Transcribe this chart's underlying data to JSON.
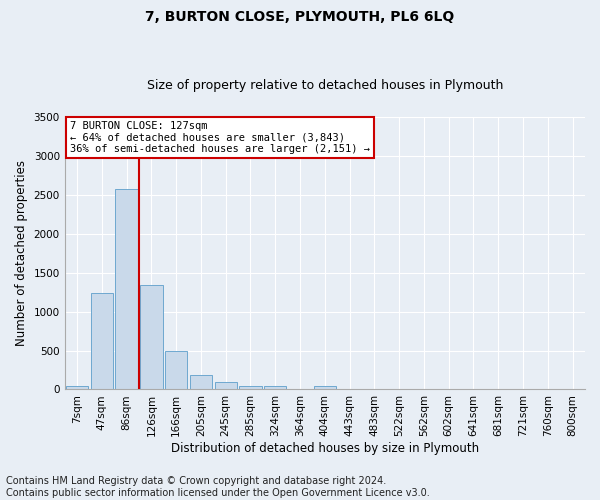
{
  "title": "7, BURTON CLOSE, PLYMOUTH, PL6 6LQ",
  "subtitle": "Size of property relative to detached houses in Plymouth",
  "xlabel": "Distribution of detached houses by size in Plymouth",
  "ylabel": "Number of detached properties",
  "categories": [
    "7sqm",
    "47sqm",
    "86sqm",
    "126sqm",
    "166sqm",
    "205sqm",
    "245sqm",
    "285sqm",
    "324sqm",
    "364sqm",
    "404sqm",
    "443sqm",
    "483sqm",
    "522sqm",
    "562sqm",
    "602sqm",
    "641sqm",
    "681sqm",
    "721sqm",
    "760sqm",
    "800sqm"
  ],
  "bar_values": [
    50,
    1240,
    2570,
    1340,
    490,
    185,
    95,
    45,
    40,
    0,
    50,
    0,
    0,
    0,
    0,
    0,
    0,
    0,
    0,
    0,
    0
  ],
  "bar_color": "#c9d9ea",
  "bar_edge_color": "#6ea8d0",
  "ylim": [
    0,
    3500
  ],
  "yticks": [
    0,
    500,
    1000,
    1500,
    2000,
    2500,
    3000,
    3500
  ],
  "vline_x_index": 2.5,
  "vline_color": "#cc0000",
  "annotation_text": "7 BURTON CLOSE: 127sqm\n← 64% of detached houses are smaller (3,843)\n36% of semi-detached houses are larger (2,151) →",
  "annotation_box_color": "#ffffff",
  "annotation_border_color": "#cc0000",
  "footer_line1": "Contains HM Land Registry data © Crown copyright and database right 2024.",
  "footer_line2": "Contains public sector information licensed under the Open Government Licence v3.0.",
  "background_color": "#e8eef5",
  "plot_bg_color": "#e8eef5",
  "grid_color": "#ffffff",
  "title_fontsize": 10,
  "subtitle_fontsize": 9,
  "axis_label_fontsize": 8.5,
  "tick_fontsize": 7.5,
  "footer_fontsize": 7
}
